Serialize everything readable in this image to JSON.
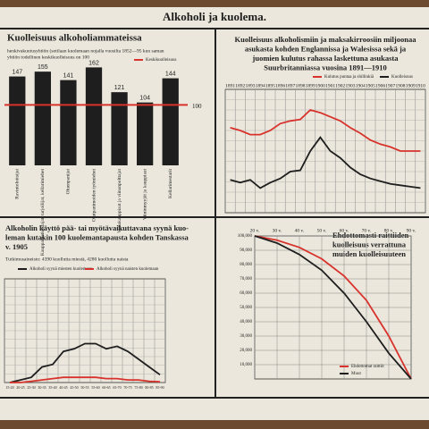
{
  "title": "Alkoholi ja kuolema.",
  "chart_data": [
    {
      "type": "bar",
      "title": [
        "Kuolleisuus alkoholiammateissa"
      ],
      "subtitle": [
        "henkivakuutusyhtiön (sotilaan kuolemaan nojalla vuosilta 1852—95 kun saman",
        "yhtiön todellinen keskikuolleisuus on 100"
      ],
      "categories": [
        "Ravintoloitsijat",
        "Kauppamatkustajat, tarjoilijat, kellarimiehet",
        "Oluenpanijat",
        "Olutpanimoiden työmiehet",
        "Viinakauppiaat ja viinanpolttajat",
        "Viininmyyjät ja kauppiaat",
        "Kellarimestarit"
      ],
      "values": [
        147,
        155,
        141,
        162,
        121,
        104,
        144
      ],
      "color": "#1e1e1e",
      "reference_line": 100,
      "reference_name": "Keskikuolleisuus",
      "reference_color": "#d8322c",
      "ylim": [
        0,
        170
      ]
    },
    {
      "type": "line",
      "title": [
        "Kuolleisuus alkoholismiin ja maksakirroosiin miljoonaa",
        "asukasta kohden Englannissa ja Walesissa sekä ja",
        "juomien kulutus rahassa laskettuna asukasta",
        "Suurbritanniassa vuosina 1891—1910"
      ],
      "categories": [
        "1891",
        "1892",
        "1893",
        "1894",
        "1895",
        "1896",
        "1897",
        "1898",
        "1899",
        "1900",
        "1901",
        "1902",
        "1903",
        "1904",
        "1905",
        "1906",
        "1907",
        "1908",
        "1909",
        "1910"
      ],
      "series": [
        {
          "name": "Kulutus puntaa ja shillinkiä",
          "color": "#d8322c",
          "values": [
            62,
            60,
            57,
            57,
            60,
            65,
            67,
            68,
            75,
            73,
            70,
            67,
            62,
            58,
            53,
            50,
            48,
            45,
            45,
            45
          ]
        },
        {
          "name": "Kuolleisuus",
          "color": "#1e1e1e",
          "values": [
            24,
            22,
            24,
            18,
            22,
            25,
            30,
            31,
            45,
            55,
            45,
            40,
            33,
            28,
            25,
            23,
            21,
            20,
            19,
            18
          ]
        }
      ],
      "ylim": [
        0,
        90
      ],
      "grid": true
    },
    {
      "type": "line",
      "title": [
        "Alkoholin käyttö pää- tai myötävaikuttavana syynä kuo-",
        "leman kutakin 100 kuolemantapausta kohden Tanskassa",
        "v. 1905"
      ],
      "subtitle": [
        "Tutkimusaineisto: 4390 kuollutta miestä, 4280 kuollutta naista"
      ],
      "categories": [
        "15-20",
        "20-25",
        "25-30",
        "30-35",
        "35-40",
        "40-45",
        "45-50",
        "50-55",
        "55-60",
        "60-65",
        "65-70",
        "70-75",
        "75-80",
        "80-85",
        "85-90"
      ],
      "series": [
        {
          "name": "Alkoholi syynä miesten kuolemaan",
          "color": "#1e1e1e",
          "values": [
            0,
            1,
            2,
            6,
            7,
            12,
            13,
            15,
            15,
            13,
            14,
            12,
            9,
            6,
            3
          ]
        },
        {
          "name": "Alkoholi syynä naisten kuolemaan",
          "color": "#d8322c",
          "values": [
            0,
            0,
            0.5,
            1,
            1.5,
            2,
            2,
            2,
            2,
            1.5,
            1.5,
            1,
            1,
            0.5,
            0.3
          ]
        }
      ],
      "ylim": [
        0,
        40
      ],
      "grid": true
    },
    {
      "type": "line",
      "title": [
        "Ehdottomasti raittiiden",
        "kuolleisuus verrattuna",
        "muiden kuolleisuuteen"
      ],
      "x": [
        20,
        30,
        40,
        50,
        60,
        70,
        80,
        90
      ],
      "series": [
        {
          "name": "Ehdottomat raittiit",
          "color": "#d8322c",
          "values": [
            100000,
            97000,
            92000,
            84000,
            72000,
            55000,
            30000,
            0
          ]
        },
        {
          "name": "Muut",
          "color": "#1e1e1e",
          "values": [
            100000,
            95000,
            87000,
            76000,
            60000,
            40000,
            18000,
            0
          ]
        }
      ],
      "xlim": [
        20,
        90
      ],
      "xticks": [
        {
          "value": 20,
          "label": "20 v."
        },
        {
          "value": 30,
          "label": "30 v."
        },
        {
          "value": 40,
          "label": "40 v."
        },
        {
          "value": 50,
          "label": "50 v."
        },
        {
          "value": 60,
          "label": "60 v."
        },
        {
          "value": 70,
          "label": "70 v."
        },
        {
          "value": 80,
          "label": "80 v."
        },
        {
          "value": 90,
          "label": "90 v."
        }
      ],
      "ylim": [
        0,
        100000
      ],
      "yticks": [
        {
          "value": 100000,
          "label": "100,000"
        },
        {
          "value": 90000,
          "label": "90,000"
        },
        {
          "value": 80000,
          "label": "80,000"
        },
        {
          "value": 70000,
          "label": "70,000"
        },
        {
          "value": 60000,
          "label": "60,000"
        },
        {
          "value": 50000,
          "label": "50,000"
        },
        {
          "value": 40000,
          "label": "40,000"
        },
        {
          "value": 30000,
          "label": "30,000"
        },
        {
          "value": 20000,
          "label": "20,000"
        },
        {
          "value": 10000,
          "label": "10,000"
        }
      ],
      "grid": true
    }
  ]
}
